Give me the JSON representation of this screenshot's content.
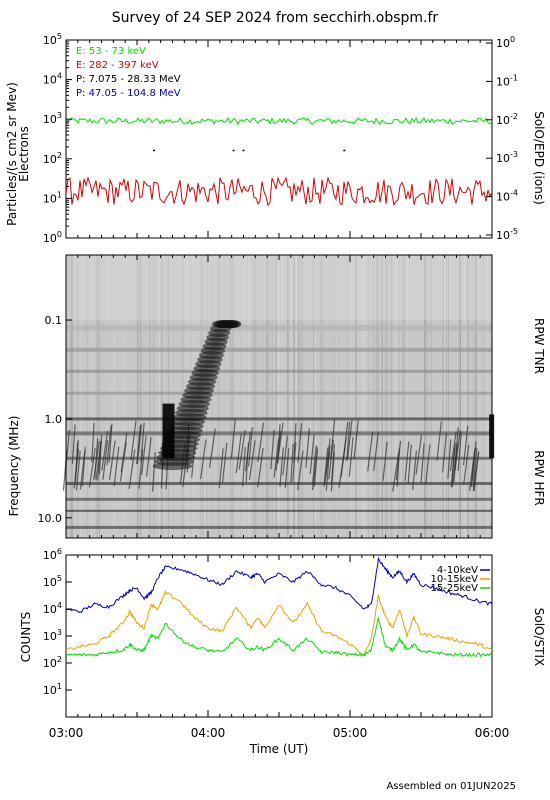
{
  "title": "Survey of 24 SEP 2024 from secchirh.obspm.fr",
  "footer": "Assembled on 01JUN2025",
  "time_axis": {
    "label": "Time (UT)",
    "ticks": [
      "03:00",
      "04:00",
      "05:00",
      "06:00"
    ],
    "range_hours": [
      3,
      6
    ]
  },
  "chart_data": [
    {
      "type": "line",
      "panel": "epd",
      "ylabel": "Particles/(s cm2 sr Mev)",
      "ylabel2": "Electrons",
      "right_label": "SolO/EPD (ions)",
      "yscale": "log",
      "ylim": [
        1,
        100000
      ],
      "y_ticks": [
        "10^0",
        "10^1",
        "10^2",
        "10^3",
        "10^4",
        "10^5"
      ],
      "right_ticks": [
        "10^-5",
        "10^-4",
        "10^-3",
        "10^-2",
        "10^-1",
        "10^0"
      ],
      "legend_entries": [
        {
          "label": "E: 53 - 73 keV",
          "color": "#00e000"
        },
        {
          "label": "E: 282 - 397 keV",
          "color": "#e00000"
        },
        {
          "label": "P: 7.075 - 28.33 MeV",
          "color": "#000000"
        },
        {
          "label": "P: 47.05 - 104.8 MeV",
          "color": "#0000c0"
        }
      ],
      "series": [
        {
          "name": "E: 53 - 73 keV",
          "color": "#00e000",
          "level": 900,
          "spread": 0.08
        },
        {
          "name": "E: 282 - 397 keV",
          "color": "#e00000",
          "level": 15,
          "spread": 0.35
        },
        {
          "name": "P: 7.075 - 28.33 MeV",
          "color": "#000000",
          "x": [
            3.62,
            4.18,
            4.25,
            4.96
          ],
          "values": [
            160,
            160,
            160,
            160
          ]
        }
      ]
    },
    {
      "type": "heatmap",
      "panel": "rpw",
      "ylabel": "Frequency (MHz)",
      "yscale": "log",
      "ylim": [
        0.022,
        16
      ],
      "y_ticks": [
        "0.1",
        "1.0",
        "10.0"
      ],
      "right_labels": [
        "RPW TNR",
        "RPW HFR"
      ]
    },
    {
      "type": "line",
      "panel": "stix",
      "ylabel": "COUNTS",
      "right_label": "SolO/STIX",
      "yscale": "log",
      "ylim": [
        1,
        1000000
      ],
      "y_ticks": [
        "10^1",
        "10^2",
        "10^3",
        "10^4",
        "10^5",
        "10^6"
      ],
      "series": [
        {
          "name": "4-10keV",
          "color": "#0000c0",
          "x": [
            3.0,
            3.1,
            3.2,
            3.3,
            3.4,
            3.45,
            3.5,
            3.55,
            3.6,
            3.65,
            3.7,
            3.8,
            3.9,
            4.0,
            4.1,
            4.2,
            4.3,
            4.35,
            4.4,
            4.5,
            4.6,
            4.7,
            4.8,
            4.9,
            5.0,
            5.1,
            5.15,
            5.2,
            5.25,
            5.3,
            5.35,
            5.4,
            5.45,
            5.5,
            5.6,
            5.7,
            5.8,
            5.9,
            6.0
          ],
          "values": [
            10000,
            8000,
            15000,
            12000,
            30000,
            50000,
            60000,
            25000,
            40000,
            150000,
            350000,
            300000,
            200000,
            120000,
            80000,
            250000,
            150000,
            200000,
            100000,
            200000,
            100000,
            250000,
            80000,
            60000,
            30000,
            10000,
            15000,
            700000,
            300000,
            150000,
            250000,
            100000,
            200000,
            80000,
            60000,
            40000,
            30000,
            20000,
            15000
          ]
        },
        {
          "name": "10-15keV",
          "color": "#f0a000",
          "x": [
            3.0,
            3.1,
            3.2,
            3.3,
            3.4,
            3.45,
            3.5,
            3.55,
            3.6,
            3.65,
            3.7,
            3.8,
            3.9,
            4.0,
            4.1,
            4.2,
            4.3,
            4.35,
            4.4,
            4.5,
            4.6,
            4.7,
            4.8,
            4.9,
            5.0,
            5.1,
            5.15,
            5.2,
            5.25,
            5.3,
            5.35,
            5.4,
            5.45,
            5.5,
            5.6,
            5.7,
            5.8,
            5.9,
            6.0
          ],
          "values": [
            300,
            400,
            500,
            1000,
            3000,
            8000,
            3000,
            2000,
            15000,
            10000,
            40000,
            20000,
            5000,
            2000,
            1500,
            12000,
            2000,
            5000,
            2000,
            15000,
            3000,
            15000,
            1500,
            1000,
            500,
            200,
            800,
            30000,
            5000,
            2000,
            10000,
            1000,
            5000,
            1200,
            1000,
            800,
            600,
            500,
            300
          ]
        },
        {
          "name": "15-25keV",
          "color": "#00e000",
          "x": [
            3.0,
            3.1,
            3.2,
            3.3,
            3.4,
            3.45,
            3.5,
            3.55,
            3.6,
            3.65,
            3.7,
            3.8,
            3.9,
            4.0,
            4.1,
            4.2,
            4.3,
            4.35,
            4.4,
            4.5,
            4.6,
            4.7,
            4.8,
            4.9,
            5.0,
            5.1,
            5.15,
            5.2,
            5.25,
            5.3,
            5.35,
            5.4,
            5.45,
            5.5,
            5.6,
            5.7,
            5.8,
            5.9,
            6.0
          ],
          "values": [
            200,
            200,
            200,
            250,
            300,
            500,
            300,
            300,
            1000,
            800,
            3000,
            800,
            400,
            300,
            250,
            800,
            300,
            400,
            300,
            800,
            300,
            800,
            250,
            250,
            200,
            200,
            300,
            5000,
            400,
            300,
            800,
            300,
            500,
            250,
            250,
            200,
            200,
            200,
            200
          ]
        }
      ]
    }
  ]
}
